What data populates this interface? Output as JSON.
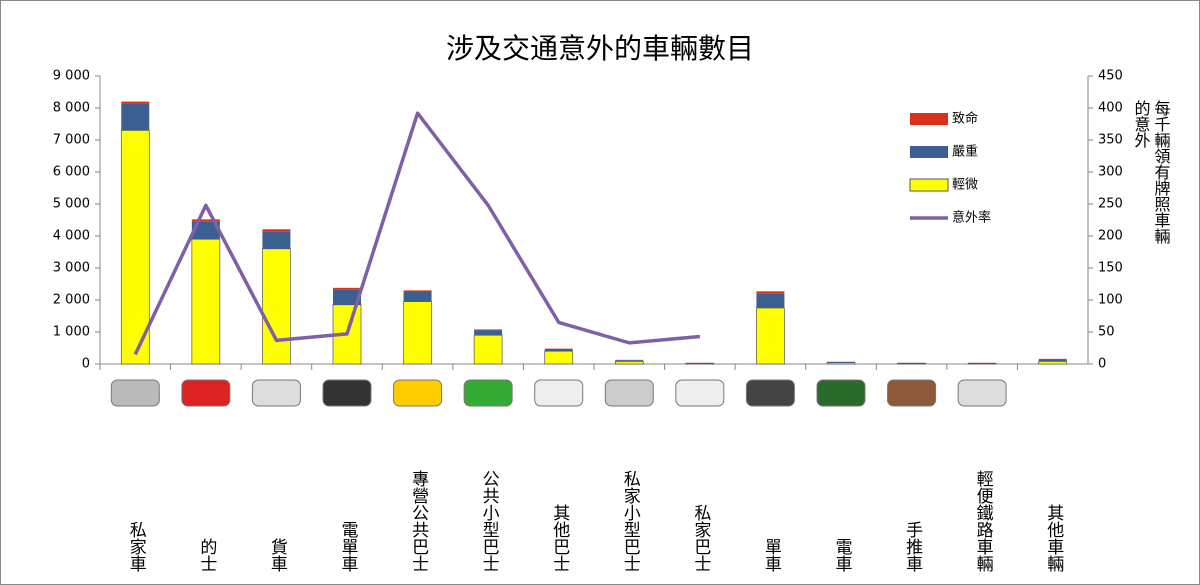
{
  "chart_data": {
    "type": "bar",
    "stacked": true,
    "title": "涉及交通意外的車輛數目",
    "y2label": [
      "每千輛領有牌照車輛",
      "的意外"
    ],
    "categories": [
      "私家車",
      "的士",
      "貨車",
      "電單車",
      "專營公共巴士",
      "公共小型巴士",
      "其他巴士",
      "私家小型巴士",
      "私家巴士",
      "單車",
      "電車",
      "手推車",
      "輕便鐵路車輛",
      "其他車輛"
    ],
    "series": [
      {
        "name": "輕微",
        "color": "#ffff00",
        "values": [
          7300,
          3900,
          3600,
          1850,
          1950,
          900,
          400,
          80,
          20,
          1750,
          40,
          20,
          20,
          80
        ]
      },
      {
        "name": "嚴重",
        "color": "#3c5f91",
        "values": [
          850,
          560,
          550,
          470,
          300,
          160,
          70,
          40,
          15,
          460,
          25,
          15,
          15,
          60
        ]
      },
      {
        "name": "致命",
        "color": "#d9301c",
        "values": [
          50,
          60,
          60,
          60,
          50,
          20,
          10,
          10,
          5,
          60,
          5,
          5,
          5,
          20
        ]
      },
      {
        "name": "意外率",
        "color": "#7f5fa8",
        "type": "line",
        "axis": "y2",
        "values": [
          15,
          248,
          37,
          47,
          392,
          248,
          65,
          33,
          43,
          null,
          null,
          null,
          null,
          null
        ]
      }
    ],
    "ylim": [
      0,
      9000
    ],
    "yticks": [
      0,
      {
        "value": 1000,
        "label": "1 000"
      },
      {
        "value": 2000,
        "label": "2 000"
      },
      {
        "value": 3000,
        "label": "3 000"
      },
      {
        "value": 4000,
        "label": "4 000"
      },
      {
        "value": 5000,
        "label": "5 000"
      },
      {
        "value": 6000,
        "label": "6 000"
      },
      {
        "value": 7000,
        "label": "7 000"
      },
      {
        "value": 8000,
        "label": "8 000"
      },
      {
        "value": 9000,
        "label": "9 000"
      }
    ],
    "y2lim": [
      0,
      450
    ],
    "y2ticks": [
      0,
      50,
      100,
      150,
      200,
      250,
      300,
      350,
      400,
      450
    ],
    "grid": false
  }
}
